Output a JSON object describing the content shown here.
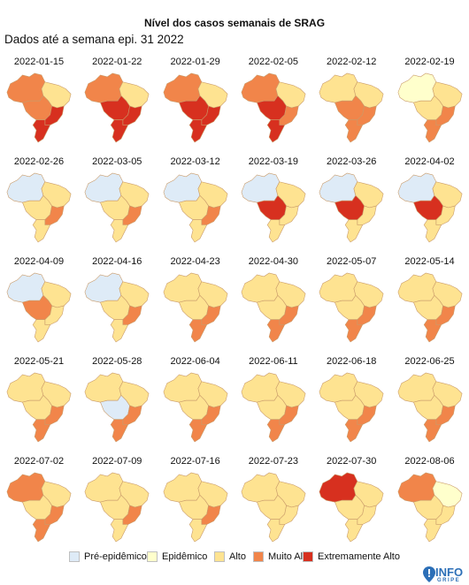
{
  "title": "Nível dos casos semanais de SRAG",
  "subtitle": "Dados até a semana epi. 31 2022",
  "colors": {
    "pre": "#deebf7",
    "epi": "#ffffcc",
    "alto": "#fee391",
    "muito": "#f1854a",
    "extremo": "#d7301f",
    "border": "#c99b6a"
  },
  "legend": {
    "items": [
      {
        "label": "Pré-epidêmico",
        "color": "#deebf7"
      },
      {
        "label": "Epidêmico",
        "color": "#ffffcc"
      },
      {
        "label": "Alto",
        "color": "#fee391"
      },
      {
        "label": "Muito Alto",
        "color": "#f1854a"
      },
      {
        "label": "Extremamente Alto",
        "color": "#d7301f"
      }
    ]
  },
  "logo": {
    "text": "INFO",
    "sub": "GRIPE",
    "icon": "pin-icon"
  },
  "weeks": [
    {
      "date": "2022-01-15",
      "levels": {
        "north": "muito",
        "northeast": "alto",
        "center": "muito",
        "southeast": "extremo",
        "south": "extremo"
      }
    },
    {
      "date": "2022-01-22",
      "levels": {
        "north": "muito",
        "northeast": "alto",
        "center": "extremo",
        "southeast": "extremo",
        "south": "extremo"
      }
    },
    {
      "date": "2022-01-29",
      "levels": {
        "north": "muito",
        "northeast": "alto",
        "center": "extremo",
        "southeast": "extremo",
        "south": "extremo"
      }
    },
    {
      "date": "2022-02-05",
      "levels": {
        "north": "muito",
        "northeast": "alto",
        "center": "extremo",
        "southeast": "muito",
        "south": "extremo"
      }
    },
    {
      "date": "2022-02-12",
      "levels": {
        "north": "alto",
        "northeast": "alto",
        "center": "muito",
        "southeast": "muito",
        "south": "muito"
      }
    },
    {
      "date": "2022-02-19",
      "levels": {
        "north": "epi",
        "northeast": "alto",
        "center": "alto",
        "southeast": "muito",
        "south": "muito"
      }
    },
    {
      "date": "2022-02-26",
      "levels": {
        "north": "pre",
        "northeast": "alto",
        "center": "alto",
        "southeast": "muito",
        "south": "alto"
      }
    },
    {
      "date": "2022-03-05",
      "levels": {
        "north": "pre",
        "northeast": "alto",
        "center": "alto",
        "southeast": "muito",
        "south": "alto"
      }
    },
    {
      "date": "2022-03-12",
      "levels": {
        "north": "pre",
        "northeast": "alto",
        "center": "alto",
        "southeast": "muito",
        "south": "alto"
      }
    },
    {
      "date": "2022-03-19",
      "levels": {
        "north": "pre",
        "northeast": "alto",
        "center": "extremo",
        "southeast": "alto",
        "south": "alto"
      }
    },
    {
      "date": "2022-03-26",
      "levels": {
        "north": "pre",
        "northeast": "alto",
        "center": "extremo",
        "southeast": "alto",
        "south": "alto"
      }
    },
    {
      "date": "2022-04-02",
      "levels": {
        "north": "pre",
        "northeast": "alto",
        "center": "extremo",
        "southeast": "alto",
        "south": "alto"
      }
    },
    {
      "date": "2022-04-09",
      "levels": {
        "north": "pre",
        "northeast": "alto",
        "center": "muito",
        "southeast": "alto",
        "south": "alto"
      }
    },
    {
      "date": "2022-04-16",
      "levels": {
        "north": "pre",
        "northeast": "alto",
        "center": "alto",
        "southeast": "muito",
        "south": "alto"
      }
    },
    {
      "date": "2022-04-23",
      "levels": {
        "north": "alto",
        "northeast": "alto",
        "center": "alto",
        "southeast": "muito",
        "south": "muito"
      }
    },
    {
      "date": "2022-04-30",
      "levels": {
        "north": "alto",
        "northeast": "alto",
        "center": "alto",
        "southeast": "muito",
        "south": "muito"
      }
    },
    {
      "date": "2022-05-07",
      "levels": {
        "north": "alto",
        "northeast": "alto",
        "center": "alto",
        "southeast": "muito",
        "south": "muito"
      }
    },
    {
      "date": "2022-05-14",
      "levels": {
        "north": "alto",
        "northeast": "alto",
        "center": "alto",
        "southeast": "muito",
        "south": "muito"
      }
    },
    {
      "date": "2022-05-21",
      "levels": {
        "north": "alto",
        "northeast": "alto",
        "center": "alto",
        "southeast": "muito",
        "south": "muito"
      }
    },
    {
      "date": "2022-05-28",
      "levels": {
        "north": "alto",
        "northeast": "alto",
        "center": "pre",
        "southeast": "muito",
        "south": "muito"
      }
    },
    {
      "date": "2022-06-04",
      "levels": {
        "north": "alto",
        "northeast": "alto",
        "center": "alto",
        "southeast": "muito",
        "south": "muito"
      }
    },
    {
      "date": "2022-06-11",
      "levels": {
        "north": "alto",
        "northeast": "alto",
        "center": "alto",
        "southeast": "muito",
        "south": "muito"
      }
    },
    {
      "date": "2022-06-18",
      "levels": {
        "north": "alto",
        "northeast": "alto",
        "center": "alto",
        "southeast": "muito",
        "south": "muito"
      }
    },
    {
      "date": "2022-06-25",
      "levels": {
        "north": "alto",
        "northeast": "alto",
        "center": "alto",
        "southeast": "muito",
        "south": "muito"
      }
    },
    {
      "date": "2022-07-02",
      "levels": {
        "north": "muito",
        "northeast": "alto",
        "center": "alto",
        "southeast": "muito",
        "south": "muito"
      }
    },
    {
      "date": "2022-07-09",
      "levels": {
        "north": "alto",
        "northeast": "alto",
        "center": "alto",
        "southeast": "muito",
        "south": "alto"
      }
    },
    {
      "date": "2022-07-16",
      "levels": {
        "north": "alto",
        "northeast": "alto",
        "center": "alto",
        "southeast": "muito",
        "south": "alto"
      }
    },
    {
      "date": "2022-07-23",
      "levels": {
        "north": "alto",
        "northeast": "alto",
        "center": "alto",
        "southeast": "alto",
        "south": "alto"
      }
    },
    {
      "date": "2022-07-30",
      "levels": {
        "north": "extremo",
        "northeast": "alto",
        "center": "alto",
        "southeast": "alto",
        "south": "alto"
      }
    },
    {
      "date": "2022-08-06",
      "levels": {
        "north": "muito",
        "northeast": "epi",
        "center": "alto",
        "southeast": "alto",
        "south": "alto"
      }
    }
  ]
}
